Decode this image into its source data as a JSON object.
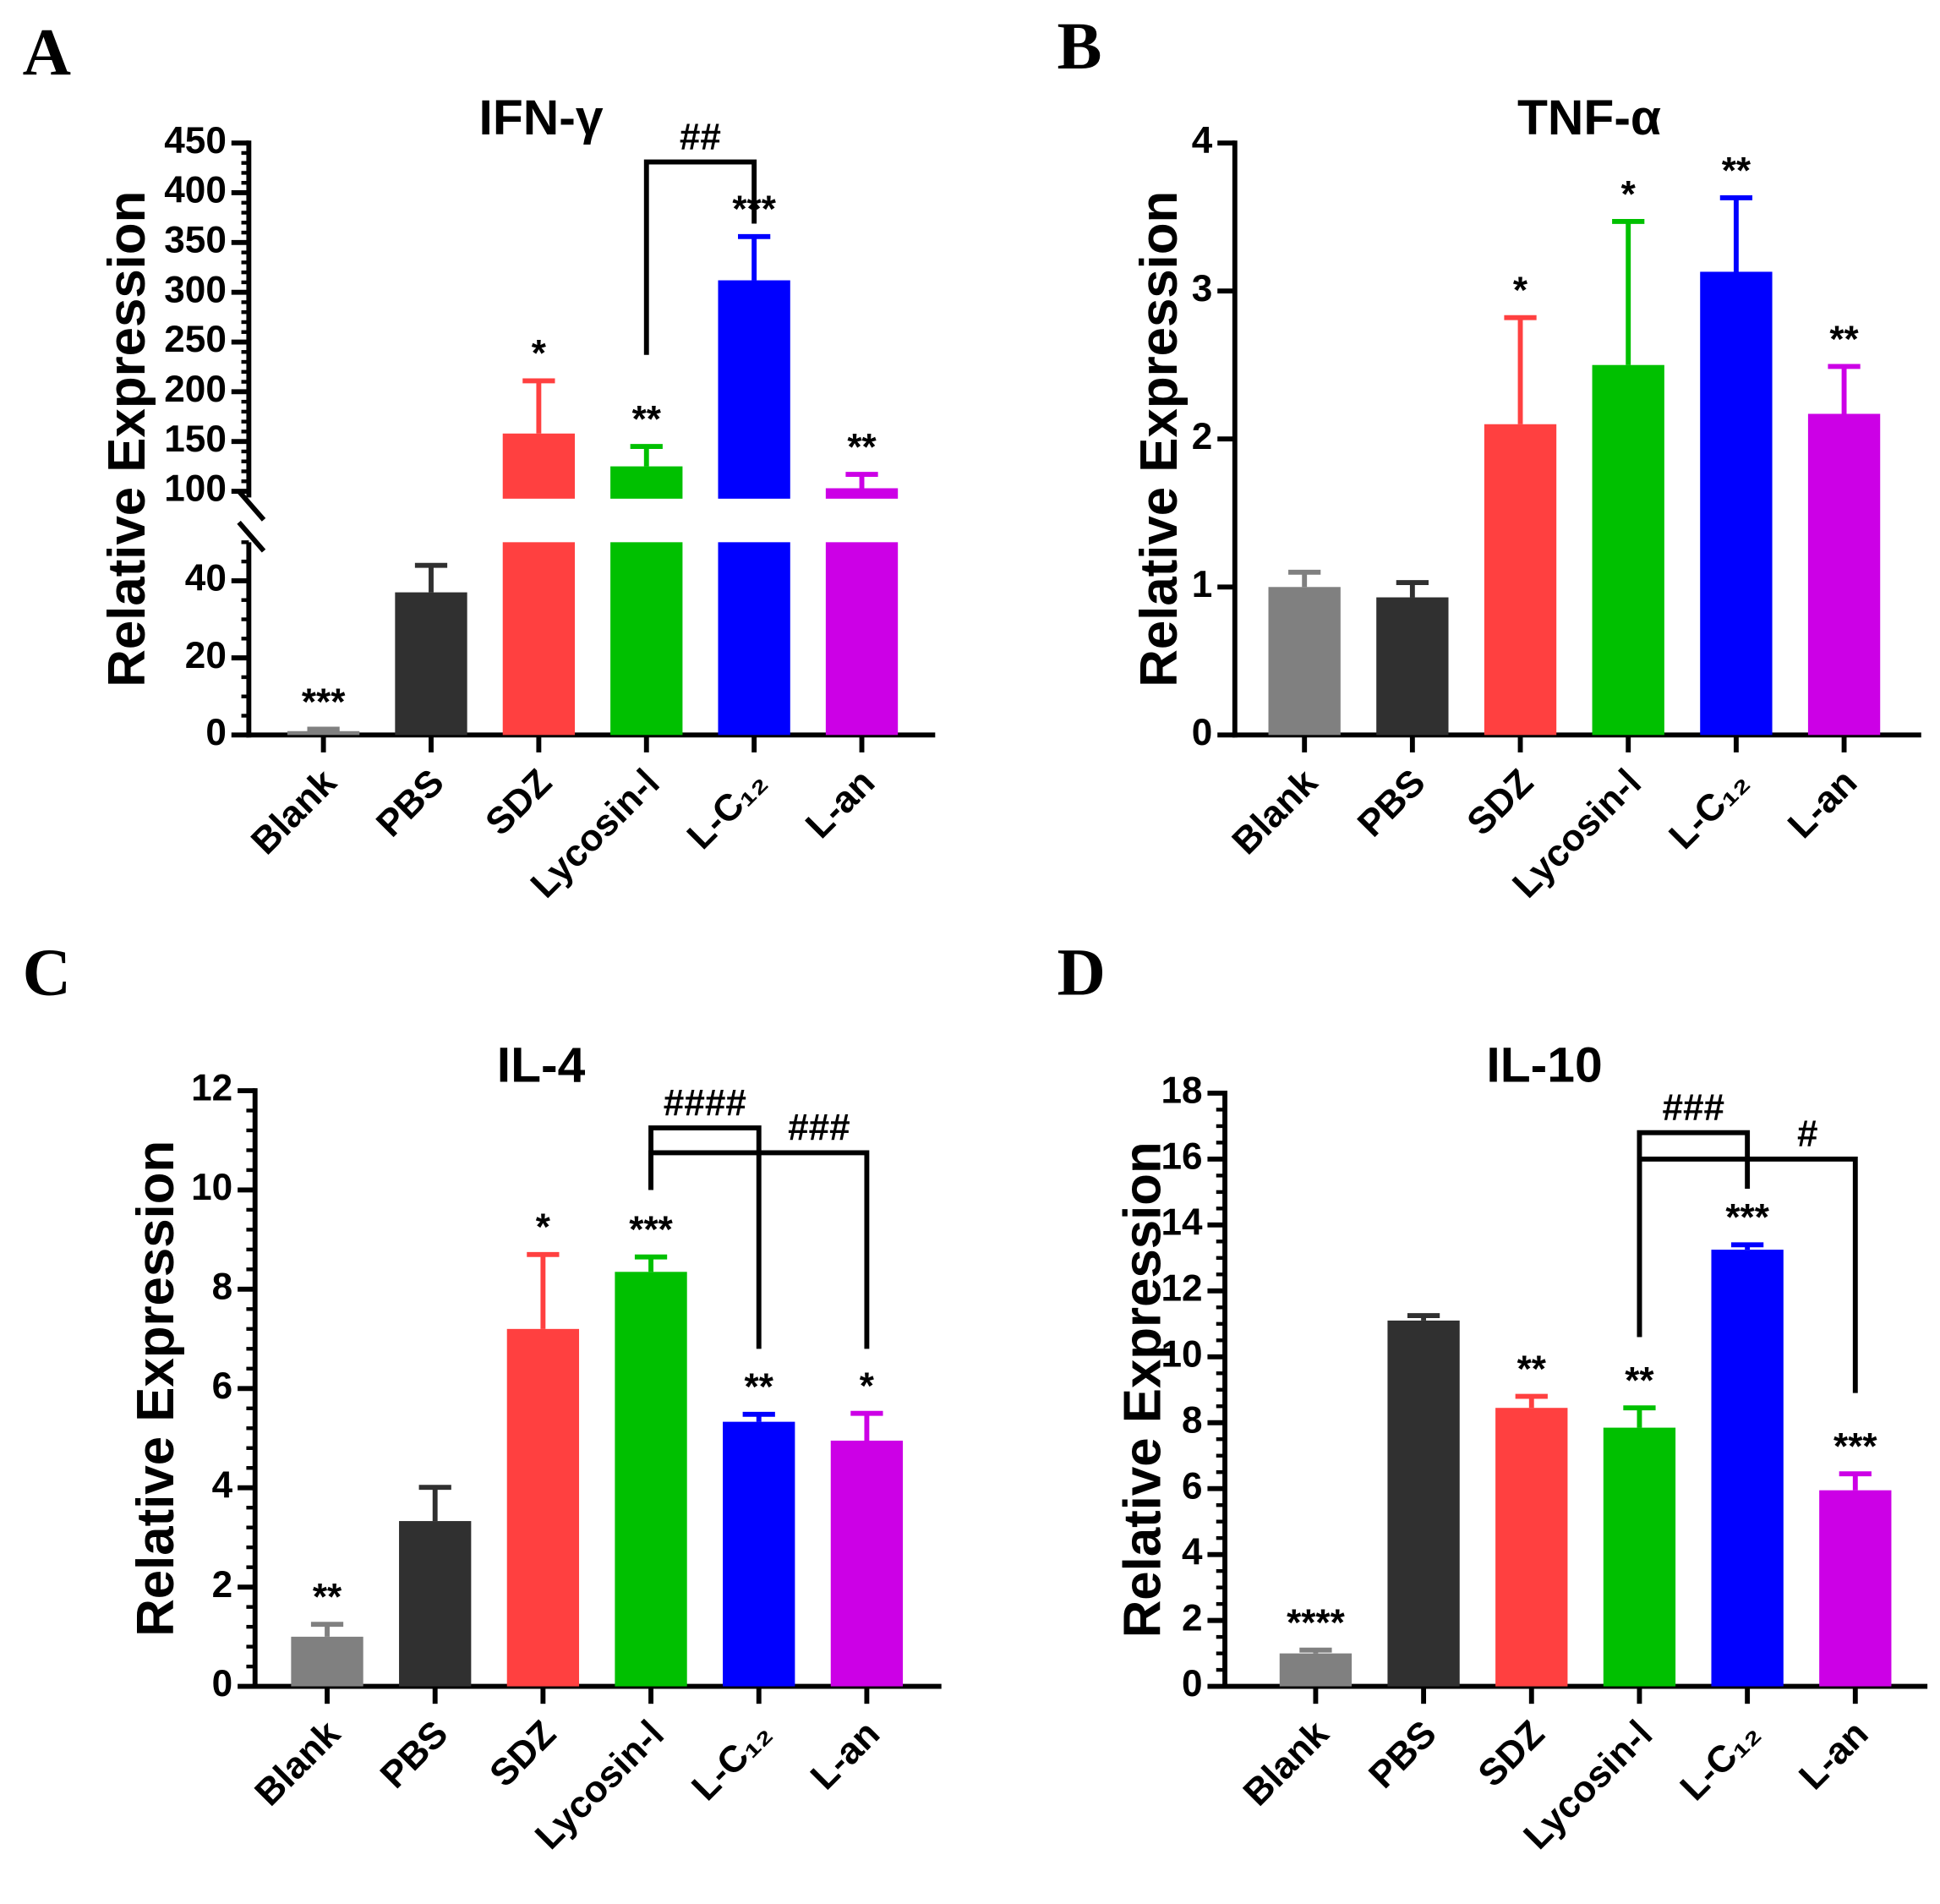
{
  "chart_data": [
    {
      "panel": "A",
      "type": "bar",
      "title": "IFN-γ",
      "xlabel": "",
      "ylabel": "Relative Expression",
      "categories": [
        "Blank",
        "PBS",
        "SDZ",
        "Lycosin-Ⅰ",
        "L-C₁₂",
        "L-an"
      ],
      "values": [
        1,
        37,
        158,
        125,
        312,
        103
      ],
      "errors": [
        0.5,
        7,
        53,
        20,
        44,
        14
      ],
      "significance": [
        "***",
        "",
        "*",
        "**",
        "***",
        "**"
      ],
      "ylim": [
        0,
        450
      ],
      "axis_break": [
        50,
        100
      ],
      "yticks": [
        0,
        20,
        40,
        100,
        150,
        200,
        250,
        300,
        350,
        400,
        450
      ],
      "brackets": [
        {
          "from": 3,
          "to": 4,
          "y": 431,
          "left_end": 237,
          "right_end": 369,
          "label": "##"
        }
      ]
    },
    {
      "panel": "B",
      "type": "bar",
      "title": "TNF-α",
      "xlabel": "",
      "ylabel": "Relative Expression",
      "categories": [
        "Blank",
        "PBS",
        "SDZ",
        "Lycosin-Ⅰ",
        "L-C₁₂",
        "L-an"
      ],
      "values": [
        1.0,
        0.93,
        2.1,
        2.5,
        3.13,
        2.17
      ],
      "errors": [
        0.1,
        0.1,
        0.72,
        0.97,
        0.5,
        0.32
      ],
      "significance": [
        "",
        "",
        "*",
        "*",
        "**",
        "**"
      ],
      "ylim": [
        0,
        4
      ],
      "yticks": [
        0,
        1,
        2,
        3,
        4
      ],
      "brackets": []
    },
    {
      "panel": "C",
      "type": "bar",
      "title": "IL-4",
      "xlabel": "",
      "ylabel": "Relative Expression",
      "categories": [
        "Blank",
        "PBS",
        "SDZ",
        "Lycosin-Ⅰ",
        "L-C₁₂",
        "L-an"
      ],
      "values": [
        1.0,
        3.33,
        7.2,
        8.35,
        5.33,
        4.95
      ],
      "errors": [
        0.25,
        0.68,
        1.5,
        0.3,
        0.15,
        0.55
      ],
      "significance": [
        "**",
        "",
        "*",
        "***",
        "**",
        "*"
      ],
      "ylim": [
        0,
        12
      ],
      "yticks": [
        0,
        2,
        4,
        6,
        8,
        10,
        12
      ],
      "brackets": [
        {
          "from": 3,
          "to": 4,
          "y": 11.25,
          "left_end": 10.0,
          "right_end": 6.8,
          "label": "####"
        },
        {
          "from": 3,
          "to": 5,
          "y": 10.75,
          "left_end": 10.0,
          "right_end": 6.8,
          "label": "###"
        }
      ]
    },
    {
      "panel": "D",
      "type": "bar",
      "title": "IL-10",
      "xlabel": "",
      "ylabel": "Relative Expression",
      "categories": [
        "Blank",
        "PBS",
        "SDZ",
        "Lycosin-Ⅰ",
        "L-C₁₂",
        "L-an"
      ],
      "values": [
        1.0,
        11.1,
        8.45,
        7.85,
        13.25,
        5.95
      ],
      "errors": [
        0.1,
        0.15,
        0.35,
        0.6,
        0.15,
        0.5
      ],
      "significance": [
        "****",
        "",
        "**",
        "**",
        "***",
        "***"
      ],
      "ylim": [
        0,
        18
      ],
      "yticks": [
        0,
        2,
        4,
        6,
        8,
        10,
        12,
        14,
        16,
        18
      ],
      "brackets": [
        {
          "from": 3,
          "to": 4,
          "y": 16.8,
          "left_end": 10.6,
          "right_end": 15.1,
          "label": "###"
        },
        {
          "from": 3,
          "to": 5,
          "y": 16.0,
          "left_end": 10.6,
          "right_end": 8.9,
          "label": "#"
        }
      ]
    }
  ],
  "colors": [
    "#808080",
    "#303030",
    "#FF4040",
    "#00C000",
    "#0000FF",
    "#CC00E6"
  ]
}
